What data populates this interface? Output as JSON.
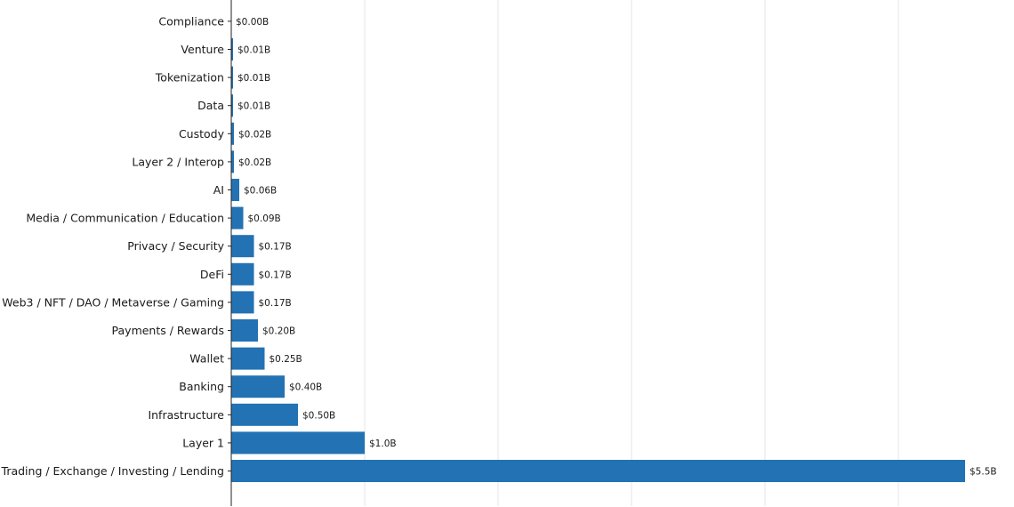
{
  "chart_data": {
    "type": "bar",
    "orientation": "horizontal",
    "categories": [
      "Trading / Exchange / Investing / Lending",
      "Layer 1",
      "Infrastructure",
      "Banking",
      "Wallet",
      "Payments / Rewards",
      "Web3 / NFT / DAO / Metaverse / Gaming",
      "DeFi",
      "Privacy / Security",
      "Media / Communication / Education",
      "AI",
      "Layer 2 / Interop",
      "Custody",
      "Data",
      "Tokenization",
      "Venture",
      "Compliance"
    ],
    "values": [
      5.5,
      1.0,
      0.5,
      0.4,
      0.25,
      0.2,
      0.17,
      0.17,
      0.17,
      0.09,
      0.06,
      0.02,
      0.02,
      0.01,
      0.01,
      0.01,
      0.0
    ],
    "value_labels": [
      "$5.5B",
      "$1.0B",
      "$0.50B",
      "$0.40B",
      "$0.25B",
      "$0.20B",
      "$0.17B",
      "$0.17B",
      "$0.17B",
      "$0.09B",
      "$0.06B",
      "$0.02B",
      "$0.02B",
      "$0.01B",
      "$0.01B",
      "$0.01B",
      "$0.00B"
    ],
    "xlim": [
      0,
      5.8
    ],
    "grid_x": [
      0,
      1,
      2,
      3,
      4,
      5
    ],
    "grid": true,
    "bar_color": "#2272b4",
    "grid_color": "#e4e4e4",
    "title": "",
    "xlabel": "",
    "ylabel": ""
  }
}
